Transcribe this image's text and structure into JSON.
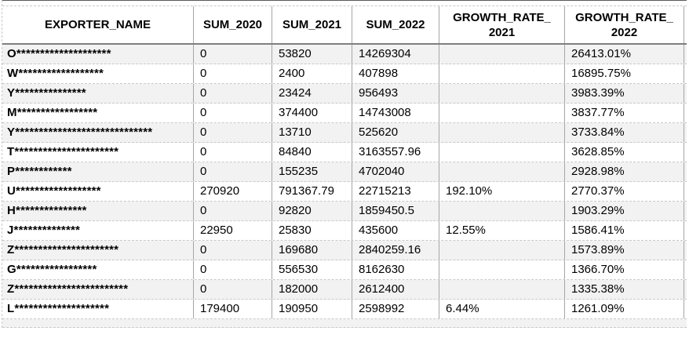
{
  "table": {
    "headers": [
      {
        "line1": "EXPORTER_NAME",
        "line2": ""
      },
      {
        "line1": "SUM_2020",
        "line2": ""
      },
      {
        "line1": "SUM_2021",
        "line2": ""
      },
      {
        "line1": "SUM_2022",
        "line2": ""
      },
      {
        "line1": "GROWTH_RATE_",
        "line2": "2021"
      },
      {
        "line1": "GROWTH_RATE_",
        "line2": "2022"
      }
    ],
    "rows": [
      {
        "name": "O********************",
        "sum_2020": "0",
        "sum_2021": "53820",
        "sum_2022": "14269304",
        "growth_2021": "",
        "growth_2022": "26413.01%"
      },
      {
        "name": "W******************",
        "sum_2020": "0",
        "sum_2021": "2400",
        "sum_2022": "407898",
        "growth_2021": "",
        "growth_2022": "16895.75%"
      },
      {
        "name": "Y***************",
        "sum_2020": "0",
        "sum_2021": "23424",
        "sum_2022": "956493",
        "growth_2021": "",
        "growth_2022": "3983.39%"
      },
      {
        "name": "M*****************",
        "sum_2020": "0",
        "sum_2021": "374400",
        "sum_2022": "14743008",
        "growth_2021": "",
        "growth_2022": "3837.77%"
      },
      {
        "name": "Y*****************************",
        "sum_2020": "0",
        "sum_2021": "13710",
        "sum_2022": "525620",
        "growth_2021": "",
        "growth_2022": "3733.84%"
      },
      {
        "name": "T**********************",
        "sum_2020": "0",
        "sum_2021": "84840",
        "sum_2022": "3163557.96",
        "growth_2021": "",
        "growth_2022": "3628.85%"
      },
      {
        "name": "P************",
        "sum_2020": "0",
        "sum_2021": "155235",
        "sum_2022": "4702040",
        "growth_2021": "",
        "growth_2022": "2928.98%"
      },
      {
        "name": "U******************",
        "sum_2020": "270920",
        "sum_2021": "791367.79",
        "sum_2022": "22715213",
        "growth_2021": "192.10%",
        "growth_2022": "2770.37%"
      },
      {
        "name": "H***************",
        "sum_2020": "0",
        "sum_2021": "92820",
        "sum_2022": "1859450.5",
        "growth_2021": "",
        "growth_2022": "1903.29%"
      },
      {
        "name": "J**************",
        "sum_2020": "22950",
        "sum_2021": "25830",
        "sum_2022": "435600",
        "growth_2021": "12.55%",
        "growth_2022": "1586.41%"
      },
      {
        "name": "Z**********************",
        "sum_2020": "0",
        "sum_2021": "169680",
        "sum_2022": "2840259.16",
        "growth_2021": "",
        "growth_2022": "1573.89%"
      },
      {
        "name": "G*****************",
        "sum_2020": "0",
        "sum_2021": "556530",
        "sum_2022": "8162630",
        "growth_2021": "",
        "growth_2022": "1366.70%"
      },
      {
        "name": "Z************************",
        "sum_2020": "0",
        "sum_2021": "182000",
        "sum_2022": "2612400",
        "growth_2021": "",
        "growth_2022": "1335.38%"
      },
      {
        "name": "L********************",
        "sum_2020": "179400",
        "sum_2021": "190950",
        "sum_2022": "2598992",
        "growth_2021": "6.44%",
        "growth_2022": "1261.09%"
      }
    ],
    "colors": {
      "band_fill": "#f2f2f2",
      "grid_vertical": "#a6a6a6",
      "grid_horizontal_dashed": "#c9c9c9",
      "header_divider": "#7f7f7f"
    }
  }
}
